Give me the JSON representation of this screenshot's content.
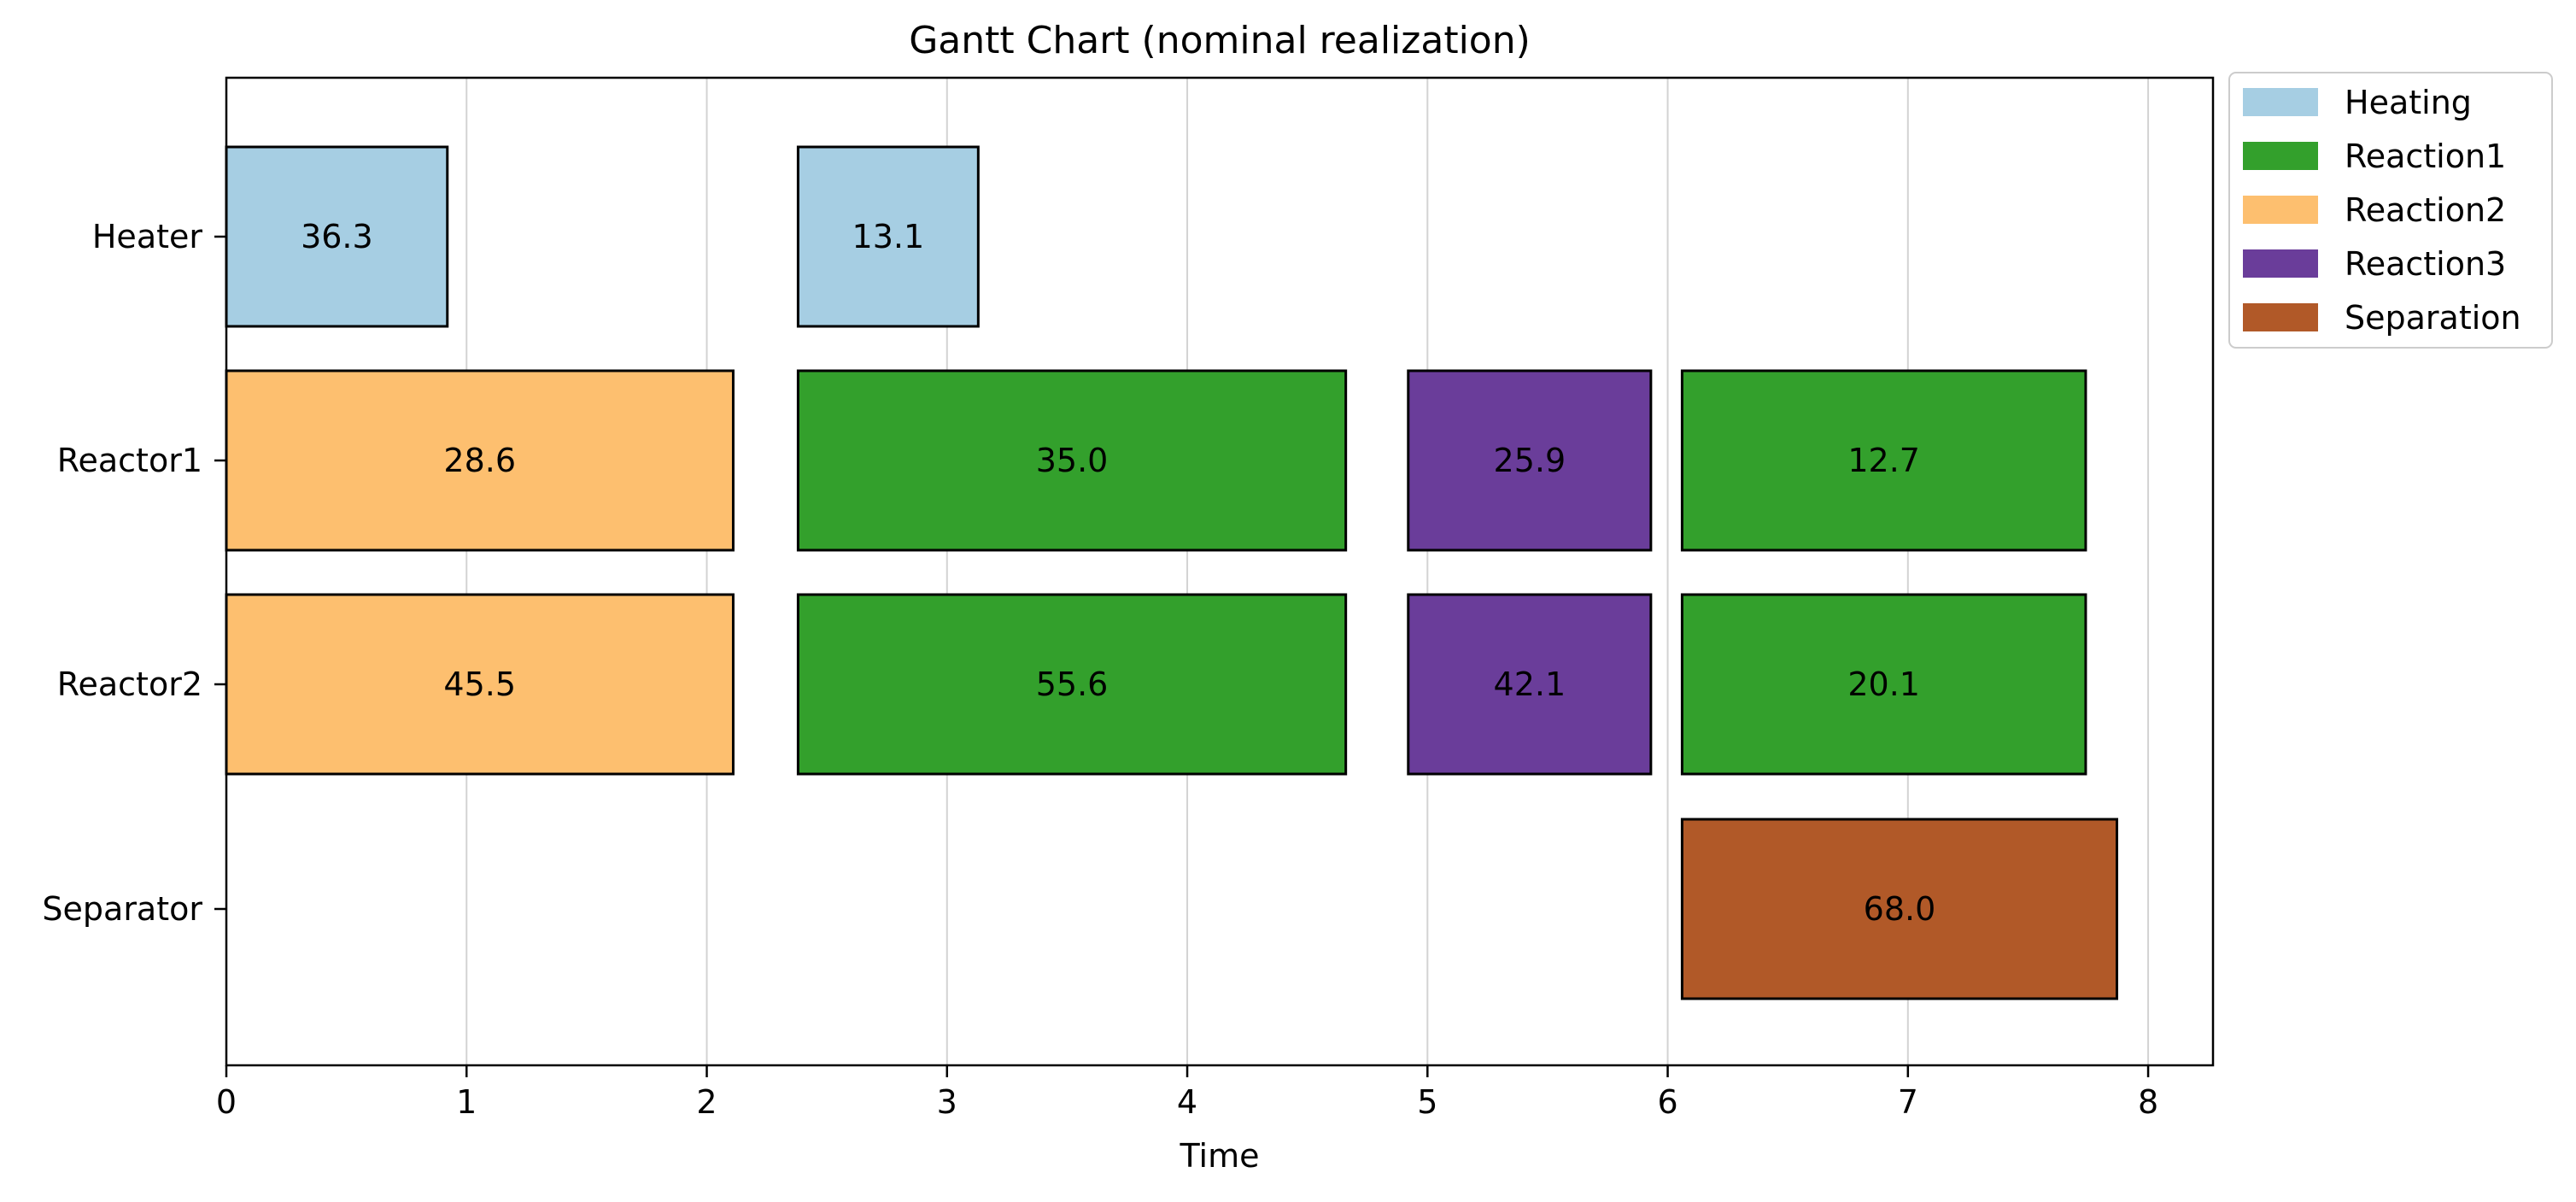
{
  "chart_data": {
    "type": "gantt",
    "title": "Gantt Chart (nominal realization)",
    "xlabel": "Time",
    "ylabel": "",
    "xlim": [
      0,
      8.27
    ],
    "xticks": [
      0,
      1,
      2,
      3,
      4,
      5,
      6,
      7,
      8
    ],
    "grid": "vertical",
    "legend_position": "outside-top-right",
    "rows": [
      "Heater",
      "Reactor1",
      "Reactor2",
      "Separator"
    ],
    "task_colors": {
      "Heating": "#a6cee3",
      "Reaction1": "#33a02c",
      "Reaction2": "#fdbf6f",
      "Reaction3": "#6a3d9a",
      "Separation": "#b15928"
    },
    "legend": [
      "Heating",
      "Reaction1",
      "Reaction2",
      "Reaction3",
      "Separation"
    ],
    "bars": [
      {
        "row": "Heater",
        "task": "Heating",
        "start": 0.0,
        "end": 0.92,
        "label": "36.3"
      },
      {
        "row": "Heater",
        "task": "Heating",
        "start": 2.38,
        "end": 3.13,
        "label": "13.1"
      },
      {
        "row": "Reactor1",
        "task": "Reaction2",
        "start": 0.0,
        "end": 2.11,
        "label": "28.6"
      },
      {
        "row": "Reactor1",
        "task": "Reaction1",
        "start": 2.38,
        "end": 4.66,
        "label": "35.0"
      },
      {
        "row": "Reactor1",
        "task": "Reaction3",
        "start": 4.92,
        "end": 5.93,
        "label": "25.9"
      },
      {
        "row": "Reactor1",
        "task": "Reaction1",
        "start": 6.06,
        "end": 7.74,
        "label": "12.7"
      },
      {
        "row": "Reactor2",
        "task": "Reaction2",
        "start": 0.0,
        "end": 2.11,
        "label": "45.5"
      },
      {
        "row": "Reactor2",
        "task": "Reaction1",
        "start": 2.38,
        "end": 4.66,
        "label": "55.6"
      },
      {
        "row": "Reactor2",
        "task": "Reaction3",
        "start": 4.92,
        "end": 5.93,
        "label": "42.1"
      },
      {
        "row": "Reactor2",
        "task": "Reaction1",
        "start": 6.06,
        "end": 7.74,
        "label": "20.1"
      },
      {
        "row": "Separator",
        "task": "Separation",
        "start": 6.06,
        "end": 7.87,
        "label": "68.0"
      }
    ]
  }
}
